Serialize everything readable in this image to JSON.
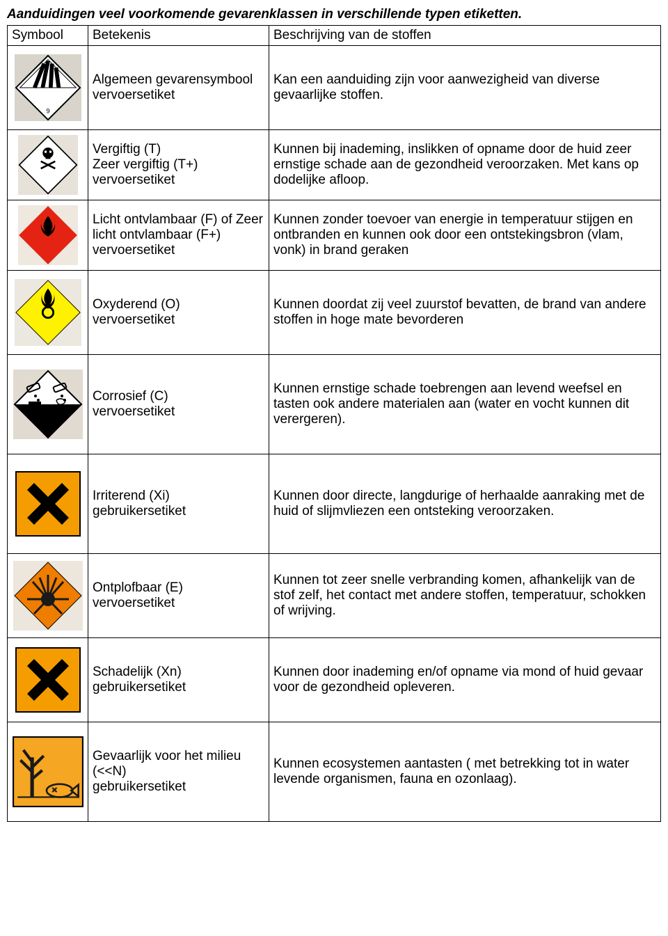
{
  "title": "Aanduidingen veel voorkomende gevarenklassen in verschillende typen etiketten.",
  "headers": {
    "symbool": "Symbool",
    "betekenis": "Betekenis",
    "beschrijving": "Beschrijving van de stoffen"
  },
  "rows": [
    {
      "icon": "algemeen",
      "betekenis": "Algemeen gevarensymbool vervoersetiket",
      "beschrijving": "Kan een aanduiding zijn voor aanwezigheid van diverse gevaarlijke stoffen.",
      "style": {
        "fill": "#ffffff",
        "stroke": "#000000",
        "bg": "#d8d4cc",
        "iconcolor": "#000000"
      }
    },
    {
      "icon": "vergiftig",
      "betekenis": "Vergiftig (T)\nZeer vergiftig (T+)\nvervoersetiket",
      "beschrijving": "Kunnen bij inademing, inslikken of opname door de huid zeer ernstige schade aan de gezondheid veroorzaken. Met kans op dodelijke afloop.",
      "style": {
        "fill": "#ffffff",
        "stroke": "#000000",
        "bg": "#e6e2da",
        "iconcolor": "#000000"
      }
    },
    {
      "icon": "ontvlambaar",
      "betekenis": "Licht ontvlambaar (F) of Zeer licht ontvlambaar (F+)\nvervoersetiket",
      "beschrijving": "Kunnen zonder toevoer van energie in temperatuur stijgen en ontbranden en kunnen ook door een ontstekingsbron (vlam, vonk) in brand geraken",
      "style": {
        "fill": "#e42313",
        "stroke": "#e42313",
        "bg": "#eee8de",
        "iconcolor": "#000000"
      }
    },
    {
      "icon": "oxyderend",
      "betekenis": "Oxyderend (O)\nvervoersetiket",
      "beschrijving": "Kunnen doordat zij veel zuurstof bevatten, de brand van andere stoffen in hoge mate bevorderen",
      "style": {
        "fill": "#fff200",
        "stroke": "#000000",
        "bg": "#ece8e0",
        "iconcolor": "#000000"
      }
    },
    {
      "icon": "corrosief",
      "betekenis": "Corrosief (C)\nvervoersetiket",
      "beschrijving": "Kunnen ernstige schade toebrengen aan levend weefsel en tasten ook andere materialen aan (water en vocht kunnen dit verergeren).",
      "style": {
        "fill_top": "#ffffff",
        "fill_bottom": "#000000",
        "stroke": "#000000",
        "bg": "#e0dad0",
        "iconcolor": "#000000"
      }
    },
    {
      "icon": "irriterend",
      "betekenis": "Irriterend (Xi)\ngebruikersetiket",
      "beschrijving": "Kunnen door directe, langdurige of herhaalde aanraking met de huid of slijmvliezen een ontsteking veroorzaken.",
      "style": {
        "fill": "#f59c00",
        "stroke": "#000000",
        "bg": "#ffffff",
        "iconcolor": "#000000"
      }
    },
    {
      "icon": "ontplofbaar",
      "betekenis": "Ontplofbaar (E)\nvervoersetiket",
      "beschrijving": "Kunnen tot zeer snelle verbranding komen, afhankelijk van de stof zelf, het contact met andere stoffen, temperatuur, schokken of wrijving.",
      "style": {
        "fill": "#ef7d00",
        "stroke": "#000000",
        "bg": "#ece6dc",
        "iconcolor": "#1a1a1a"
      }
    },
    {
      "icon": "schadelijk",
      "betekenis": "Schadelijk (Xn)\ngebruikersetiket",
      "beschrijving": "Kunnen door inademing en/of opname via mond of huid gevaar voor de gezondheid opleveren.",
      "style": {
        "fill": "#f59c00",
        "stroke": "#000000",
        "bg": "#ffffff",
        "iconcolor": "#000000"
      }
    },
    {
      "icon": "milieu",
      "betekenis": "Gevaarlijk voor het milieu (<<N)\ngebruikersetiket",
      "beschrijving": "Kunnen ecosystemen aantasten ( met betrekking tot in water levende organismen, fauna en ozonlaag).",
      "style": {
        "fill": "#f5a623",
        "stroke": "#000000",
        "bg": "#ffffff",
        "iconcolor": "#1a1a1a"
      }
    }
  ]
}
